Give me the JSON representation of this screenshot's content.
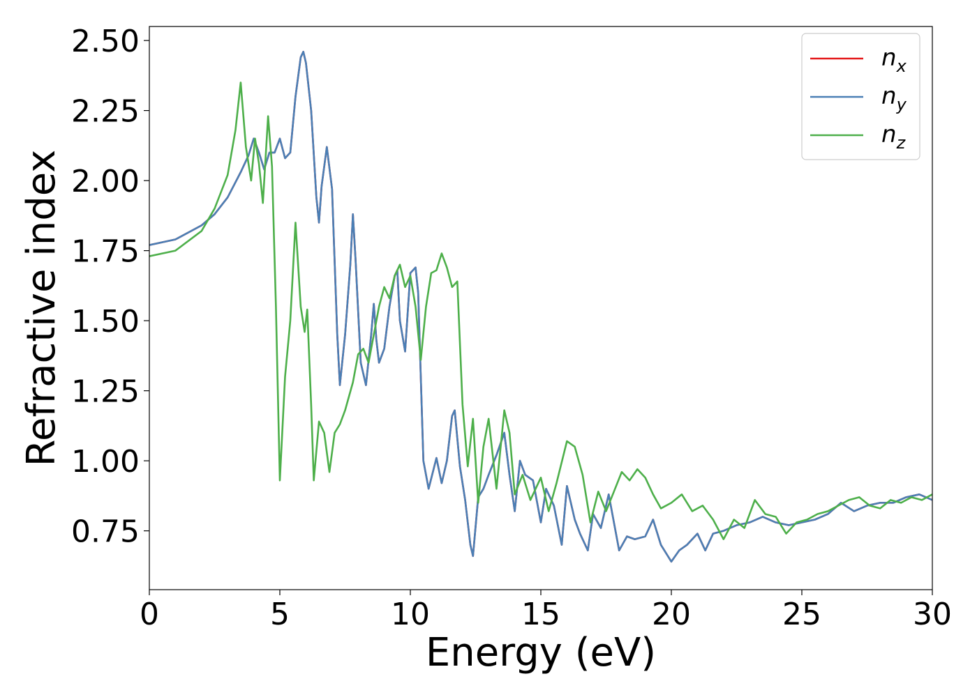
{
  "chart_data": {
    "type": "line",
    "title": "",
    "xlabel": "Energy (eV)",
    "ylabel": "Refractive index",
    "xlim": [
      0,
      30
    ],
    "ylim": [
      0.54,
      2.55
    ],
    "xticks": [
      0,
      5,
      10,
      15,
      20,
      25,
      30
    ],
    "xtick_labels": [
      "0",
      "5",
      "10",
      "15",
      "20",
      "25",
      "30"
    ],
    "yticks": [
      0.75,
      1.0,
      1.25,
      1.5,
      1.75,
      2.0,
      2.25,
      2.5
    ],
    "ytick_labels": [
      "0.75",
      "1.00",
      "1.25",
      "1.50",
      "1.75",
      "2.00",
      "2.25",
      "2.50"
    ],
    "grid": false,
    "legend_position": "top-right",
    "series": [
      {
        "name": "n",
        "subscript": "x",
        "color": "#e41a1c",
        "x": [
          0,
          1,
          2,
          2.5,
          3,
          3.5,
          3.8,
          4.0,
          4.2,
          4.4,
          4.6,
          4.8,
          5.0,
          5.2,
          5.4,
          5.6,
          5.8,
          5.9,
          6.0,
          6.2,
          6.4,
          6.5,
          6.6,
          6.8,
          7.0,
          7.2,
          7.3,
          7.5,
          7.7,
          7.8,
          7.9,
          8.1,
          8.3,
          8.5,
          8.6,
          8.7,
          8.8,
          9.0,
          9.2,
          9.4,
          9.5,
          9.6,
          9.8,
          10.0,
          10.2,
          10.3,
          10.5,
          10.7,
          11.0,
          11.2,
          11.4,
          11.6,
          11.7,
          11.9,
          12.1,
          12.3,
          12.4,
          12.6,
          12.8,
          13.0,
          13.3,
          13.6,
          13.8,
          14.0,
          14.2,
          14.4,
          14.7,
          15.0,
          15.2,
          15.5,
          15.8,
          16.0,
          16.3,
          16.5,
          16.8,
          17.0,
          17.3,
          17.6,
          18.0,
          18.3,
          18.6,
          19.0,
          19.3,
          19.6,
          20.0,
          20.3,
          20.6,
          21.0,
          21.3,
          21.6,
          22.0,
          22.5,
          23.0,
          23.5,
          24.0,
          24.5,
          25.0,
          25.5,
          26.0,
          26.5,
          27.0,
          27.5,
          28.0,
          28.5,
          29.0,
          29.5,
          30.0
        ],
        "y": [
          1.77,
          1.79,
          1.84,
          1.88,
          1.94,
          2.03,
          2.09,
          2.15,
          2.1,
          2.04,
          2.1,
          2.1,
          2.15,
          2.08,
          2.1,
          2.3,
          2.44,
          2.46,
          2.42,
          2.25,
          1.94,
          1.85,
          1.98,
          2.12,
          1.97,
          1.45,
          1.27,
          1.45,
          1.7,
          1.88,
          1.72,
          1.35,
          1.27,
          1.45,
          1.56,
          1.43,
          1.35,
          1.4,
          1.55,
          1.66,
          1.68,
          1.5,
          1.39,
          1.67,
          1.69,
          1.6,
          1.0,
          0.9,
          1.01,
          0.92,
          1.0,
          1.16,
          1.18,
          0.98,
          0.86,
          0.7,
          0.66,
          0.87,
          0.9,
          0.95,
          1.02,
          1.1,
          0.95,
          0.82,
          1.0,
          0.95,
          0.93,
          0.78,
          0.9,
          0.84,
          0.7,
          0.91,
          0.79,
          0.74,
          0.68,
          0.81,
          0.76,
          0.88,
          0.68,
          0.73,
          0.72,
          0.73,
          0.79,
          0.7,
          0.64,
          0.68,
          0.7,
          0.74,
          0.68,
          0.74,
          0.75,
          0.77,
          0.78,
          0.8,
          0.78,
          0.77,
          0.78,
          0.79,
          0.81,
          0.85,
          0.82,
          0.84,
          0.85,
          0.85,
          0.87,
          0.88,
          0.86
        ]
      },
      {
        "name": "n",
        "subscript": "y",
        "color": "#4a7fb5",
        "x": [
          0,
          1,
          2,
          2.5,
          3,
          3.5,
          3.8,
          4.0,
          4.2,
          4.4,
          4.6,
          4.8,
          5.0,
          5.2,
          5.4,
          5.6,
          5.8,
          5.9,
          6.0,
          6.2,
          6.4,
          6.5,
          6.6,
          6.8,
          7.0,
          7.2,
          7.3,
          7.5,
          7.7,
          7.8,
          7.9,
          8.1,
          8.3,
          8.5,
          8.6,
          8.7,
          8.8,
          9.0,
          9.2,
          9.4,
          9.5,
          9.6,
          9.8,
          10.0,
          10.2,
          10.3,
          10.5,
          10.7,
          11.0,
          11.2,
          11.4,
          11.6,
          11.7,
          11.9,
          12.1,
          12.3,
          12.4,
          12.6,
          12.8,
          13.0,
          13.3,
          13.6,
          13.8,
          14.0,
          14.2,
          14.4,
          14.7,
          15.0,
          15.2,
          15.5,
          15.8,
          16.0,
          16.3,
          16.5,
          16.8,
          17.0,
          17.3,
          17.6,
          18.0,
          18.3,
          18.6,
          19.0,
          19.3,
          19.6,
          20.0,
          20.3,
          20.6,
          21.0,
          21.3,
          21.6,
          22.0,
          22.5,
          23.0,
          23.5,
          24.0,
          24.5,
          25.0,
          25.5,
          26.0,
          26.5,
          27.0,
          27.5,
          28.0,
          28.5,
          29.0,
          29.5,
          30.0
        ],
        "y": [
          1.77,
          1.79,
          1.84,
          1.88,
          1.94,
          2.03,
          2.09,
          2.15,
          2.1,
          2.04,
          2.1,
          2.1,
          2.15,
          2.08,
          2.1,
          2.3,
          2.44,
          2.46,
          2.42,
          2.25,
          1.94,
          1.85,
          1.98,
          2.12,
          1.97,
          1.45,
          1.27,
          1.45,
          1.7,
          1.88,
          1.72,
          1.35,
          1.27,
          1.45,
          1.56,
          1.43,
          1.35,
          1.4,
          1.55,
          1.66,
          1.68,
          1.5,
          1.39,
          1.67,
          1.69,
          1.6,
          1.0,
          0.9,
          1.01,
          0.92,
          1.0,
          1.16,
          1.18,
          0.98,
          0.86,
          0.7,
          0.66,
          0.87,
          0.9,
          0.95,
          1.02,
          1.1,
          0.95,
          0.82,
          1.0,
          0.95,
          0.93,
          0.78,
          0.9,
          0.84,
          0.7,
          0.91,
          0.79,
          0.74,
          0.68,
          0.81,
          0.76,
          0.88,
          0.68,
          0.73,
          0.72,
          0.73,
          0.79,
          0.7,
          0.64,
          0.68,
          0.7,
          0.74,
          0.68,
          0.74,
          0.75,
          0.77,
          0.78,
          0.8,
          0.78,
          0.77,
          0.78,
          0.79,
          0.81,
          0.85,
          0.82,
          0.84,
          0.85,
          0.85,
          0.87,
          0.88,
          0.86
        ]
      },
      {
        "name": "n",
        "subscript": "z",
        "color": "#4daf4a",
        "x": [
          0,
          1,
          2,
          2.5,
          3,
          3.3,
          3.5,
          3.7,
          3.9,
          4.05,
          4.2,
          4.35,
          4.55,
          4.7,
          4.85,
          5.0,
          5.2,
          5.4,
          5.6,
          5.8,
          5.95,
          6.05,
          6.2,
          6.3,
          6.5,
          6.7,
          6.9,
          7.1,
          7.3,
          7.5,
          7.8,
          8.0,
          8.2,
          8.4,
          8.6,
          8.8,
          9.0,
          9.2,
          9.4,
          9.6,
          9.8,
          10.0,
          10.2,
          10.4,
          10.6,
          10.8,
          11.0,
          11.2,
          11.4,
          11.6,
          11.8,
          12.0,
          12.2,
          12.4,
          12.6,
          12.8,
          13.0,
          13.3,
          13.6,
          13.8,
          14.0,
          14.3,
          14.6,
          15.0,
          15.3,
          15.6,
          16.0,
          16.3,
          16.6,
          16.9,
          17.2,
          17.5,
          17.8,
          18.1,
          18.4,
          18.7,
          19.0,
          19.3,
          19.6,
          20.0,
          20.4,
          20.8,
          21.2,
          21.6,
          22.0,
          22.4,
          22.8,
          23.2,
          23.6,
          24.0,
          24.4,
          24.8,
          25.2,
          25.6,
          26.0,
          26.4,
          26.8,
          27.2,
          27.6,
          28.0,
          28.4,
          28.8,
          29.2,
          29.6,
          30.0
        ],
        "y": [
          1.73,
          1.75,
          1.82,
          1.9,
          2.02,
          2.18,
          2.35,
          2.12,
          2.0,
          2.15,
          2.06,
          1.92,
          2.23,
          2.05,
          1.55,
          0.93,
          1.3,
          1.5,
          1.85,
          1.55,
          1.46,
          1.54,
          1.2,
          0.93,
          1.14,
          1.1,
          0.96,
          1.1,
          1.13,
          1.18,
          1.28,
          1.38,
          1.4,
          1.35,
          1.45,
          1.55,
          1.62,
          1.58,
          1.66,
          1.7,
          1.62,
          1.66,
          1.55,
          1.36,
          1.55,
          1.67,
          1.68,
          1.74,
          1.69,
          1.62,
          1.64,
          1.2,
          0.98,
          1.15,
          0.85,
          1.05,
          1.15,
          0.9,
          1.18,
          1.1,
          0.88,
          0.95,
          0.86,
          0.94,
          0.82,
          0.92,
          1.07,
          1.05,
          0.95,
          0.78,
          0.89,
          0.82,
          0.89,
          0.96,
          0.93,
          0.97,
          0.94,
          0.88,
          0.83,
          0.85,
          0.88,
          0.82,
          0.84,
          0.79,
          0.72,
          0.79,
          0.76,
          0.86,
          0.81,
          0.8,
          0.74,
          0.78,
          0.79,
          0.81,
          0.82,
          0.84,
          0.86,
          0.87,
          0.84,
          0.83,
          0.86,
          0.85,
          0.87,
          0.86,
          0.88
        ]
      }
    ]
  }
}
